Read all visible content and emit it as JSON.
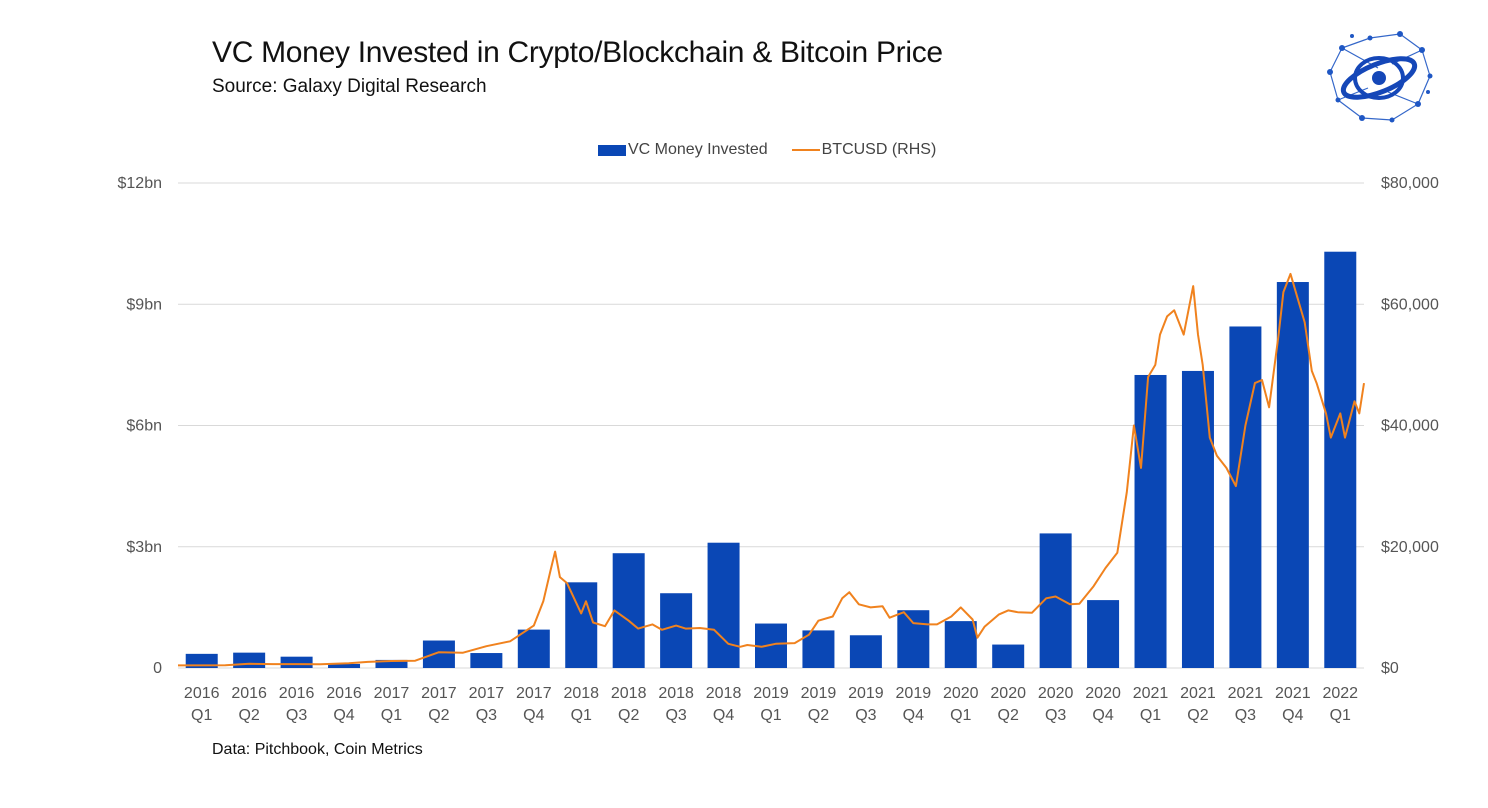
{
  "header": {
    "title": "VC Money Invested in Crypto/Blockchain & Bitcoin Price",
    "subtitle": "Source: Galaxy Digital Research"
  },
  "footer": {
    "note": "Data: Pitchbook, Coin Metrics"
  },
  "logo": {
    "icon": "galaxy-network-logo"
  },
  "legend": {
    "position": "top-center",
    "items": [
      "VC Money Invested",
      "BTCUSD (RHS)"
    ]
  },
  "colors": {
    "bars": "#0a47b5",
    "line": "#f0821e",
    "grid": "#d9d9d9"
  },
  "chart_data": {
    "type": "bar",
    "grid": true,
    "categories": [
      [
        "2016",
        "Q1"
      ],
      [
        "2016",
        "Q2"
      ],
      [
        "2016",
        "Q3"
      ],
      [
        "2016",
        "Q4"
      ],
      [
        "2017",
        "Q1"
      ],
      [
        "2017",
        "Q2"
      ],
      [
        "2017",
        "Q3"
      ],
      [
        "2017",
        "Q4"
      ],
      [
        "2018",
        "Q1"
      ],
      [
        "2018",
        "Q2"
      ],
      [
        "2018",
        "Q3"
      ],
      [
        "2018",
        "Q4"
      ],
      [
        "2019",
        "Q1"
      ],
      [
        "2019",
        "Q2"
      ],
      [
        "2019",
        "Q3"
      ],
      [
        "2019",
        "Q4"
      ],
      [
        "2020",
        "Q1"
      ],
      [
        "2020",
        "Q2"
      ],
      [
        "2020",
        "Q3"
      ],
      [
        "2020",
        "Q4"
      ],
      [
        "2021",
        "Q1"
      ],
      [
        "2021",
        "Q2"
      ],
      [
        "2021",
        "Q3"
      ],
      [
        "2021",
        "Q4"
      ],
      [
        "2022",
        "Q1"
      ]
    ],
    "left_axis": {
      "ylim": [
        0,
        12
      ],
      "ticks": [
        0,
        3,
        6,
        9,
        12
      ],
      "tick_labels": [
        "0",
        "$3bn",
        "$6bn",
        "$9bn",
        "$12bn"
      ]
    },
    "right_axis": {
      "ylim": [
        0,
        80000
      ],
      "ticks": [
        0,
        20000,
        40000,
        60000,
        80000
      ],
      "tick_labels": [
        "$0",
        "$20,000",
        "$40,000",
        "$60,000",
        "$80,000"
      ]
    },
    "series": [
      {
        "name": "VC Money Invested",
        "type": "bar",
        "axis": "left",
        "values": [
          0.35,
          0.38,
          0.28,
          0.1,
          0.2,
          0.68,
          0.37,
          0.95,
          2.12,
          2.84,
          1.85,
          3.1,
          1.1,
          0.93,
          0.81,
          1.43,
          1.16,
          0.58,
          3.33,
          1.68,
          7.25,
          7.35,
          8.45,
          9.55,
          10.3
        ]
      },
      {
        "name": "BTCUSD (RHS)",
        "type": "line",
        "axis": "right",
        "x_period": "quarter_index",
        "points": [
          [
            0.0,
            430
          ],
          [
            1.0,
            440
          ],
          [
            1.5,
            700
          ],
          [
            2.0,
            650
          ],
          [
            2.5,
            640
          ],
          [
            3.0,
            620
          ],
          [
            3.6,
            780
          ],
          [
            4.0,
            1000
          ],
          [
            4.5,
            1150
          ],
          [
            5.0,
            1200
          ],
          [
            5.5,
            2600
          ],
          [
            6.0,
            2500
          ],
          [
            6.5,
            3600
          ],
          [
            7.0,
            4400
          ],
          [
            7.5,
            7000
          ],
          [
            7.7,
            11000
          ],
          [
            7.85,
            16000
          ],
          [
            7.95,
            19200
          ],
          [
            8.05,
            15000
          ],
          [
            8.2,
            14000
          ],
          [
            8.35,
            11500
          ],
          [
            8.5,
            9000
          ],
          [
            8.6,
            11000
          ],
          [
            8.75,
            7500
          ],
          [
            9.0,
            6900
          ],
          [
            9.2,
            9500
          ],
          [
            9.5,
            7800
          ],
          [
            9.7,
            6500
          ],
          [
            10.0,
            7200
          ],
          [
            10.2,
            6300
          ],
          [
            10.5,
            7000
          ],
          [
            10.7,
            6500
          ],
          [
            11.0,
            6600
          ],
          [
            11.3,
            6300
          ],
          [
            11.6,
            4000
          ],
          [
            11.85,
            3500
          ],
          [
            12.0,
            3800
          ],
          [
            12.3,
            3500
          ],
          [
            12.6,
            4000
          ],
          [
            13.0,
            4100
          ],
          [
            13.3,
            5500
          ],
          [
            13.5,
            7800
          ],
          [
            13.8,
            8500
          ],
          [
            14.0,
            11500
          ],
          [
            14.15,
            12500
          ],
          [
            14.35,
            10500
          ],
          [
            14.6,
            10000
          ],
          [
            14.85,
            10200
          ],
          [
            15.0,
            8300
          ],
          [
            15.3,
            9200
          ],
          [
            15.5,
            7400
          ],
          [
            15.8,
            7200
          ],
          [
            16.0,
            7200
          ],
          [
            16.3,
            8500
          ],
          [
            16.5,
            10000
          ],
          [
            16.75,
            8000
          ],
          [
            16.85,
            5000
          ],
          [
            17.0,
            6800
          ],
          [
            17.3,
            8800
          ],
          [
            17.5,
            9500
          ],
          [
            17.7,
            9200
          ],
          [
            18.0,
            9100
          ],
          [
            18.3,
            11500
          ],
          [
            18.5,
            11800
          ],
          [
            18.8,
            10500
          ],
          [
            19.0,
            10600
          ],
          [
            19.3,
            13500
          ],
          [
            19.55,
            16500
          ],
          [
            19.8,
            19000
          ],
          [
            20.0,
            29000
          ],
          [
            20.15,
            40000
          ],
          [
            20.3,
            33000
          ],
          [
            20.45,
            48000
          ],
          [
            20.6,
            50000
          ],
          [
            20.7,
            55000
          ],
          [
            20.85,
            58000
          ],
          [
            21.0,
            59000
          ],
          [
            21.2,
            55000
          ],
          [
            21.4,
            63000
          ],
          [
            21.5,
            55000
          ],
          [
            21.6,
            50000
          ],
          [
            21.75,
            38000
          ],
          [
            21.9,
            35000
          ],
          [
            22.1,
            33000
          ],
          [
            22.3,
            30000
          ],
          [
            22.5,
            40000
          ],
          [
            22.7,
            47000
          ],
          [
            22.85,
            47500
          ],
          [
            23.0,
            43000
          ],
          [
            23.2,
            55000
          ],
          [
            23.3,
            62000
          ],
          [
            23.45,
            65000
          ],
          [
            23.6,
            61000
          ],
          [
            23.75,
            57000
          ],
          [
            23.9,
            49000
          ],
          [
            24.0,
            47000
          ],
          [
            24.2,
            42000
          ],
          [
            24.3,
            38000
          ],
          [
            24.5,
            42000
          ],
          [
            24.6,
            38000
          ],
          [
            24.8,
            44000
          ],
          [
            24.9,
            42000
          ],
          [
            25.0,
            47000
          ]
        ]
      }
    ]
  }
}
